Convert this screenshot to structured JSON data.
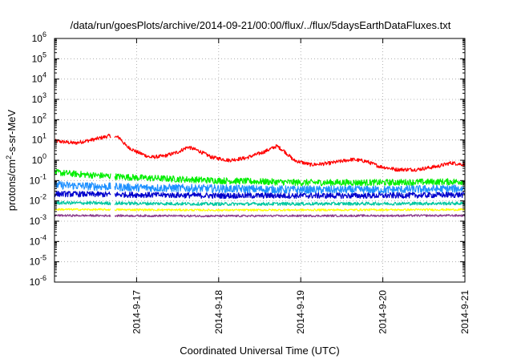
{
  "chart_data": {
    "type": "line",
    "title": "/data/run/goesPlots/archive/2014-09-21/00:00/flux/../flux/5daysEarthDataFluxes.txt",
    "xlabel": "Coordinated Universal Time (UTC)",
    "ylabel": "protons/cm^2-s-sr-MeV",
    "ylabel_parts": {
      "pre": "protons/cm",
      "sup": "2",
      "post": "-s-sr-MeV"
    },
    "y_scale": "log",
    "ylim": [
      1e-06,
      1000000
    ],
    "y_ticks": [
      {
        "base": "10",
        "exp": "-6",
        "value": 1e-06
      },
      {
        "base": "10",
        "exp": "-5",
        "value": 1e-05
      },
      {
        "base": "10",
        "exp": "-4",
        "value": 0.0001
      },
      {
        "base": "10",
        "exp": "-3",
        "value": 0.001
      },
      {
        "base": "10",
        "exp": "-2",
        "value": 0.01
      },
      {
        "base": "10",
        "exp": "-1",
        "value": 0.1
      },
      {
        "base": "10",
        "exp": "0",
        "value": 1
      },
      {
        "base": "10",
        "exp": "1",
        "value": 10
      },
      {
        "base": "10",
        "exp": "2",
        "value": 100
      },
      {
        "base": "10",
        "exp": "3",
        "value": 1000
      },
      {
        "base": "10",
        "exp": "4",
        "value": 10000
      },
      {
        "base": "10",
        "exp": "5",
        "value": 100000
      },
      {
        "base": "10",
        "exp": "6",
        "value": 1000000
      }
    ],
    "xlim": [
      "2014-09-16T00:00",
      "2014-09-21T00:00"
    ],
    "x_ticks": [
      "2014-9-17",
      "2014-9-18",
      "2014-9-19",
      "2014-9-20",
      "2014-9-21"
    ],
    "x_tick_dates": [
      "2014-09-17",
      "2014-09-18",
      "2014-09-19",
      "2014-09-20",
      "2014-09-21"
    ],
    "grid": true,
    "legend": "none",
    "data_gap": [
      "2014-09-16T16:30",
      "2014-09-16T17:30"
    ],
    "series": [
      {
        "color": "#ff0000",
        "noise": 0.09,
        "points": [
          [
            "2014-09-16T00:00",
            9
          ],
          [
            "2014-09-16T06:00",
            7
          ],
          [
            "2014-09-16T12:00",
            11
          ],
          [
            "2014-09-16T16:00",
            16
          ],
          [
            "2014-09-16T19:00",
            13
          ],
          [
            "2014-09-16T21:00",
            5
          ],
          [
            "2014-09-17T00:00",
            2.6
          ],
          [
            "2014-09-17T04:00",
            1.4
          ],
          [
            "2014-09-17T08:00",
            1.6
          ],
          [
            "2014-09-17T12:00",
            2.5
          ],
          [
            "2014-09-17T15:00",
            4.5
          ],
          [
            "2014-09-17T18:00",
            3
          ],
          [
            "2014-09-17T22:00",
            1.4
          ],
          [
            "2014-09-18T03:00",
            1.0
          ],
          [
            "2014-09-18T08:00",
            1.3
          ],
          [
            "2014-09-18T13:00",
            2.5
          ],
          [
            "2014-09-18T17:00",
            5
          ],
          [
            "2014-09-18T19:00",
            3
          ],
          [
            "2014-09-18T22:00",
            1.0
          ],
          [
            "2014-09-19T03:00",
            0.6
          ],
          [
            "2014-09-19T08:00",
            0.7
          ],
          [
            "2014-09-19T15:00",
            1.1
          ],
          [
            "2014-09-19T19:00",
            0.9
          ],
          [
            "2014-09-19T23:00",
            0.5
          ],
          [
            "2014-09-20T04:00",
            0.35
          ],
          [
            "2014-09-20T10:00",
            0.35
          ],
          [
            "2014-09-20T16:00",
            0.5
          ],
          [
            "2014-09-20T20:00",
            0.75
          ],
          [
            "2014-09-21T00:00",
            0.6
          ]
        ]
      },
      {
        "color": "#00ee00",
        "noise": 0.16,
        "points": [
          [
            "2014-09-16T00:00",
            0.25
          ],
          [
            "2014-09-16T12:00",
            0.18
          ],
          [
            "2014-09-17T00:00",
            0.14
          ],
          [
            "2014-09-18T00:00",
            0.1
          ],
          [
            "2014-09-19T00:00",
            0.08
          ],
          [
            "2014-09-20T00:00",
            0.08
          ],
          [
            "2014-09-21T00:00",
            0.09
          ]
        ]
      },
      {
        "color": "#1e90ff",
        "noise": 0.2,
        "points": [
          [
            "2014-09-16T00:00",
            0.06
          ],
          [
            "2014-09-17T00:00",
            0.045
          ],
          [
            "2014-09-18T00:00",
            0.04
          ],
          [
            "2014-09-19T00:00",
            0.035
          ],
          [
            "2014-09-20T00:00",
            0.035
          ],
          [
            "2014-09-21T00:00",
            0.04
          ]
        ]
      },
      {
        "color": "#0000cd",
        "noise": 0.14,
        "points": [
          [
            "2014-09-16T00:00",
            0.022
          ],
          [
            "2014-09-17T00:00",
            0.02
          ],
          [
            "2014-09-18T00:00",
            0.018
          ],
          [
            "2014-09-19T00:00",
            0.018
          ],
          [
            "2014-09-20T00:00",
            0.018
          ],
          [
            "2014-09-21T00:00",
            0.02
          ]
        ]
      },
      {
        "color": "#00c8a0",
        "noise": 0.08,
        "points": [
          [
            "2014-09-16T00:00",
            0.008
          ],
          [
            "2014-09-18T00:00",
            0.007
          ],
          [
            "2014-09-21T00:00",
            0.0075
          ]
        ]
      },
      {
        "color": "#ffff00",
        "noise": 0.05,
        "points": [
          [
            "2014-09-16T00:00",
            0.0038
          ],
          [
            "2014-09-18T00:00",
            0.0035
          ],
          [
            "2014-09-21T00:00",
            0.0037
          ]
        ]
      },
      {
        "color": "#8b3a8b",
        "noise": 0.05,
        "points": [
          [
            "2014-09-16T00:00",
            0.0019
          ],
          [
            "2014-09-18T00:00",
            0.0018
          ],
          [
            "2014-09-21T00:00",
            0.0019
          ]
        ]
      }
    ]
  }
}
